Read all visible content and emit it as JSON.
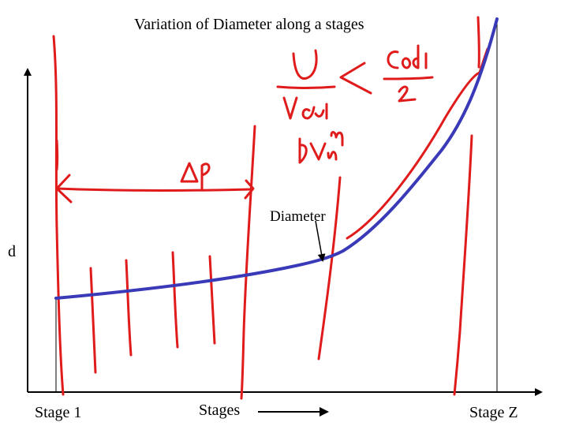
{
  "diagram": {
    "title": "Variation of Diameter along a stages",
    "y_axis_label": "d",
    "x_axis_start_label": "Stage 1",
    "x_axis_middle_label": "Stages",
    "x_axis_end_label": "Stage Z",
    "curve_annotation": "Diameter"
  },
  "colors": {
    "axis": "#000000",
    "curve": "#3a3ab8",
    "ink": "#e01b1b",
    "annotation_arrow": "#000000"
  }
}
